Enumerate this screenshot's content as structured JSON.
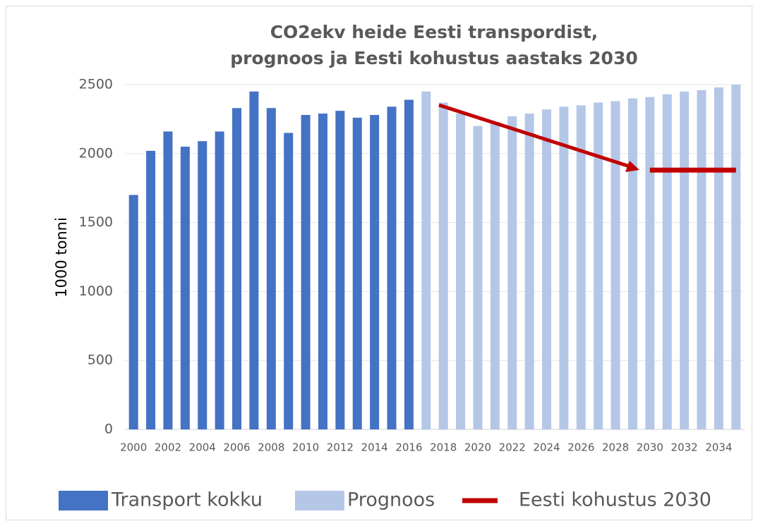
{
  "chart_data": {
    "type": "bar",
    "title": [
      "CO2ekv heide Eesti transpordist,",
      "prognoos ja Eesti kohustus aastaks 2030"
    ],
    "ylabel": "1000 tonni",
    "categories": [
      "2000",
      null,
      "2002",
      null,
      "2004",
      null,
      "2006",
      null,
      "2008",
      null,
      "2010",
      null,
      "2012",
      null,
      "2014",
      null,
      "2016",
      null,
      "2018",
      null,
      "2020",
      null,
      "2022",
      null,
      "2024",
      null,
      "2026",
      null,
      "2028",
      null,
      "2030",
      null,
      "2032",
      null,
      "2034",
      null
    ],
    "ylim": [
      0,
      2500
    ],
    "yticks": [
      0,
      500,
      1000,
      1500,
      2000,
      2500
    ],
    "grid": true,
    "legend": "bottom",
    "series": [
      {
        "name": "Transport kokku",
        "type": "bar",
        "color": "#4472c4",
        "values": [
          1700,
          2020,
          2160,
          2050,
          2090,
          2160,
          2330,
          2450,
          2330,
          2150,
          2280,
          2290,
          2310,
          2260,
          2280,
          2340,
          2390,
          null,
          null,
          null,
          null,
          null,
          null,
          null,
          null,
          null,
          null,
          null,
          null,
          null,
          null,
          null,
          null,
          null,
          null,
          null
        ]
      },
      {
        "name": "Prognoos",
        "type": "bar",
        "color": "#b4c7e7",
        "values": [
          null,
          null,
          null,
          null,
          null,
          null,
          null,
          null,
          null,
          null,
          null,
          null,
          null,
          null,
          null,
          null,
          null,
          2450,
          2370,
          2290,
          2200,
          2230,
          2270,
          2290,
          2320,
          2340,
          2350,
          2370,
          2380,
          2400,
          2410,
          2430,
          2450,
          2460,
          2480,
          2500
        ]
      },
      {
        "name": "Eesti kohustus 2030",
        "type": "line",
        "color": "#c00000",
        "values": [
          null,
          null,
          null,
          null,
          null,
          null,
          null,
          null,
          null,
          null,
          null,
          null,
          null,
          null,
          null,
          null,
          null,
          null,
          null,
          null,
          null,
          null,
          null,
          null,
          null,
          null,
          null,
          null,
          null,
          null,
          1880,
          1880,
          1880,
          1880,
          1880,
          1880
        ]
      }
    ]
  }
}
